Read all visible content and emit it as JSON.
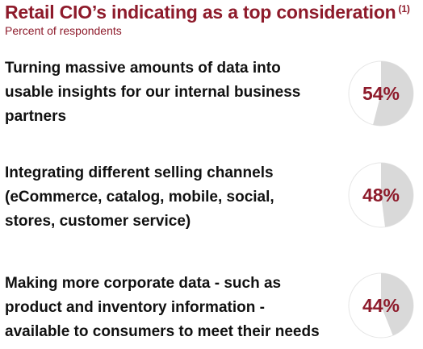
{
  "title": "Retail CIO’s indicating as a top consideration",
  "title_note": "(1)",
  "subtitle": "Percent of respondents",
  "colors": {
    "accent": "#8e1b2b",
    "pie_fill": "#d9d9d9",
    "pie_rest": "#ffffff",
    "pie_border": "#e6e6e6",
    "text": "#111111"
  },
  "rows": [
    {
      "lines": [
        "Turning massive amounts of data into",
        "usable insights for our internal business",
        "partners"
      ],
      "label": "54%"
    },
    {
      "lines": [
        "Integrating different selling channels",
        "(eCommerce, catalog, mobile, social,",
        "stores, customer service)"
      ],
      "label": "48%"
    },
    {
      "lines": [
        "Making more corporate data - such as",
        "product and inventory information -",
        "available to consumers to meet their needs"
      ],
      "label": "44%"
    }
  ],
  "chart_data": {
    "type": "pie",
    "title": "Retail CIO’s indicating as a top consideration",
    "subtitle": "Percent of respondents",
    "unit": "%",
    "categories": [
      "Turning massive amounts of data into usable insights for our internal business partners",
      "Integrating different selling channels (eCommerce, catalog, mobile, social, stores, customer service)",
      "Making more corporate data - such as product and inventory information - available to consumers to meet their needs"
    ],
    "values": [
      54,
      48,
      44
    ],
    "max": 100
  }
}
